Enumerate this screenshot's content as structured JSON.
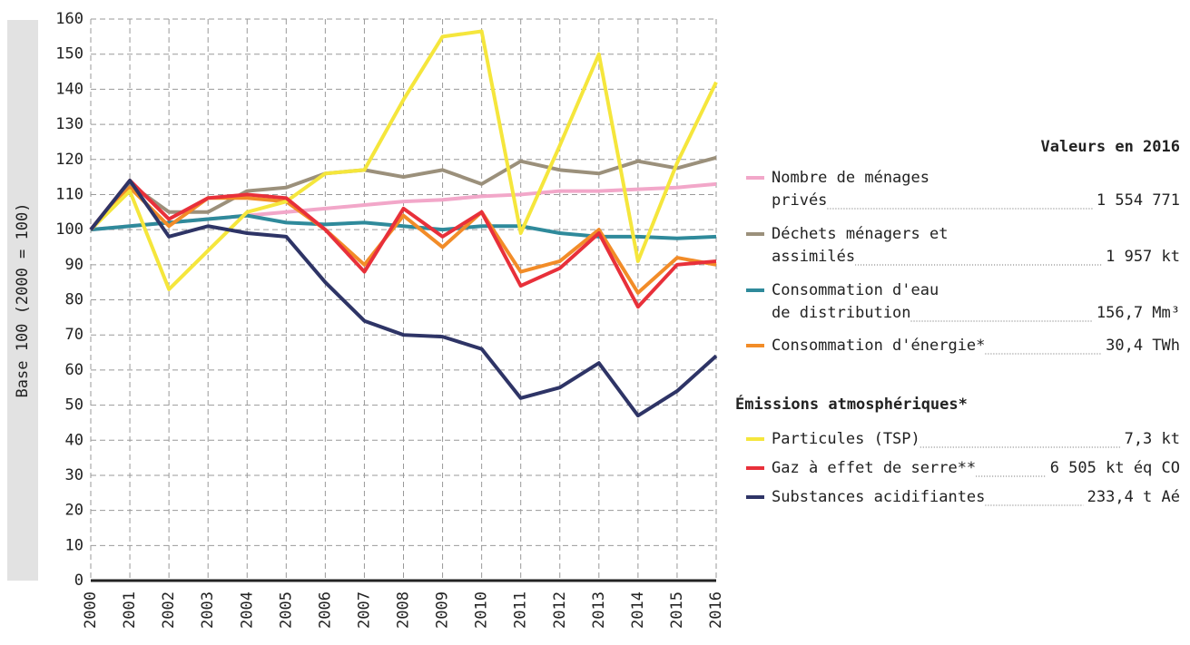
{
  "chart_data": {
    "type": "line",
    "y_label": "Base 100 (2000 = 100)",
    "legend_title": "Valeurs en 2016",
    "legend_group_title": "Émissions atmosphériques*",
    "x": [
      2000,
      2001,
      2002,
      2003,
      2004,
      2005,
      2006,
      2007,
      2008,
      2009,
      2010,
      2011,
      2012,
      2013,
      2014,
      2015,
      2016
    ],
    "xlim": [
      2000,
      2016
    ],
    "xticks": [
      2000,
      2001,
      2002,
      2003,
      2004,
      2005,
      2006,
      2007,
      2008,
      2009,
      2010,
      2011,
      2012,
      2013,
      2014,
      2015,
      2016
    ],
    "ylim": [
      0,
      160
    ],
    "yticks": [
      0,
      10,
      20,
      30,
      40,
      50,
      60,
      70,
      80,
      90,
      100,
      110,
      120,
      130,
      140,
      150,
      160
    ],
    "grid": true,
    "series": [
      {
        "name": "Nombre de ménages\nprivés",
        "legend_value": "1 554 771",
        "color": "#f2a7c9",
        "values": [
          100,
          101,
          102,
          103,
          104,
          105,
          106,
          107,
          108,
          108.5,
          109.5,
          110,
          111,
          111,
          111.5,
          112,
          113
        ]
      },
      {
        "name": "Déchets ménagers et\nassimilés",
        "legend_value": "1 957 kt",
        "color": "#9b907b",
        "values": [
          100,
          113,
          105,
          105,
          111,
          112,
          116,
          117,
          115,
          117,
          113,
          119.5,
          117,
          116,
          119.5,
          117.5,
          120.5
        ]
      },
      {
        "name": "Consommation d'eau\nde distribution",
        "legend_value": "156,7 Mm³",
        "color": "#2f8a9b",
        "values": [
          100,
          101,
          102,
          103,
          104,
          102,
          101.5,
          102,
          101,
          100,
          101,
          101,
          99,
          98,
          98,
          97.5,
          98
        ]
      },
      {
        "name": "Consommation d'énergie*",
        "legend_value": "30,4 TWh",
        "color": "#f28c28",
        "values": [
          100,
          112,
          101,
          109,
          109,
          108,
          100,
          90,
          104,
          95,
          105,
          88,
          91,
          100,
          82,
          92,
          90
        ]
      },
      {
        "name": "Particules (TSP)",
        "legend_value": "7,3 kt",
        "group": 1,
        "color": "#f5e63c",
        "values": [
          100,
          111,
          83,
          94,
          105,
          108,
          116,
          117,
          137,
          155,
          156.5,
          99,
          124,
          150,
          91,
          119,
          142
        ]
      },
      {
        "name": "Gaz à effet de serre**",
        "legend_value": "6 505 kt éq CO",
        "group": 1,
        "color": "#e8303a",
        "values": [
          100,
          114,
          103,
          109,
          110,
          109,
          100,
          88,
          106,
          98,
          105,
          84,
          89,
          99,
          78,
          90,
          91
        ]
      },
      {
        "name": "Substances acidifiantes",
        "legend_value": "233,4 t Aé",
        "group": 1,
        "color": "#2e3466",
        "values": [
          100,
          114,
          98,
          101,
          99,
          98,
          85,
          74,
          70,
          69.5,
          66,
          52,
          55,
          62,
          47,
          54,
          64
        ]
      }
    ]
  }
}
